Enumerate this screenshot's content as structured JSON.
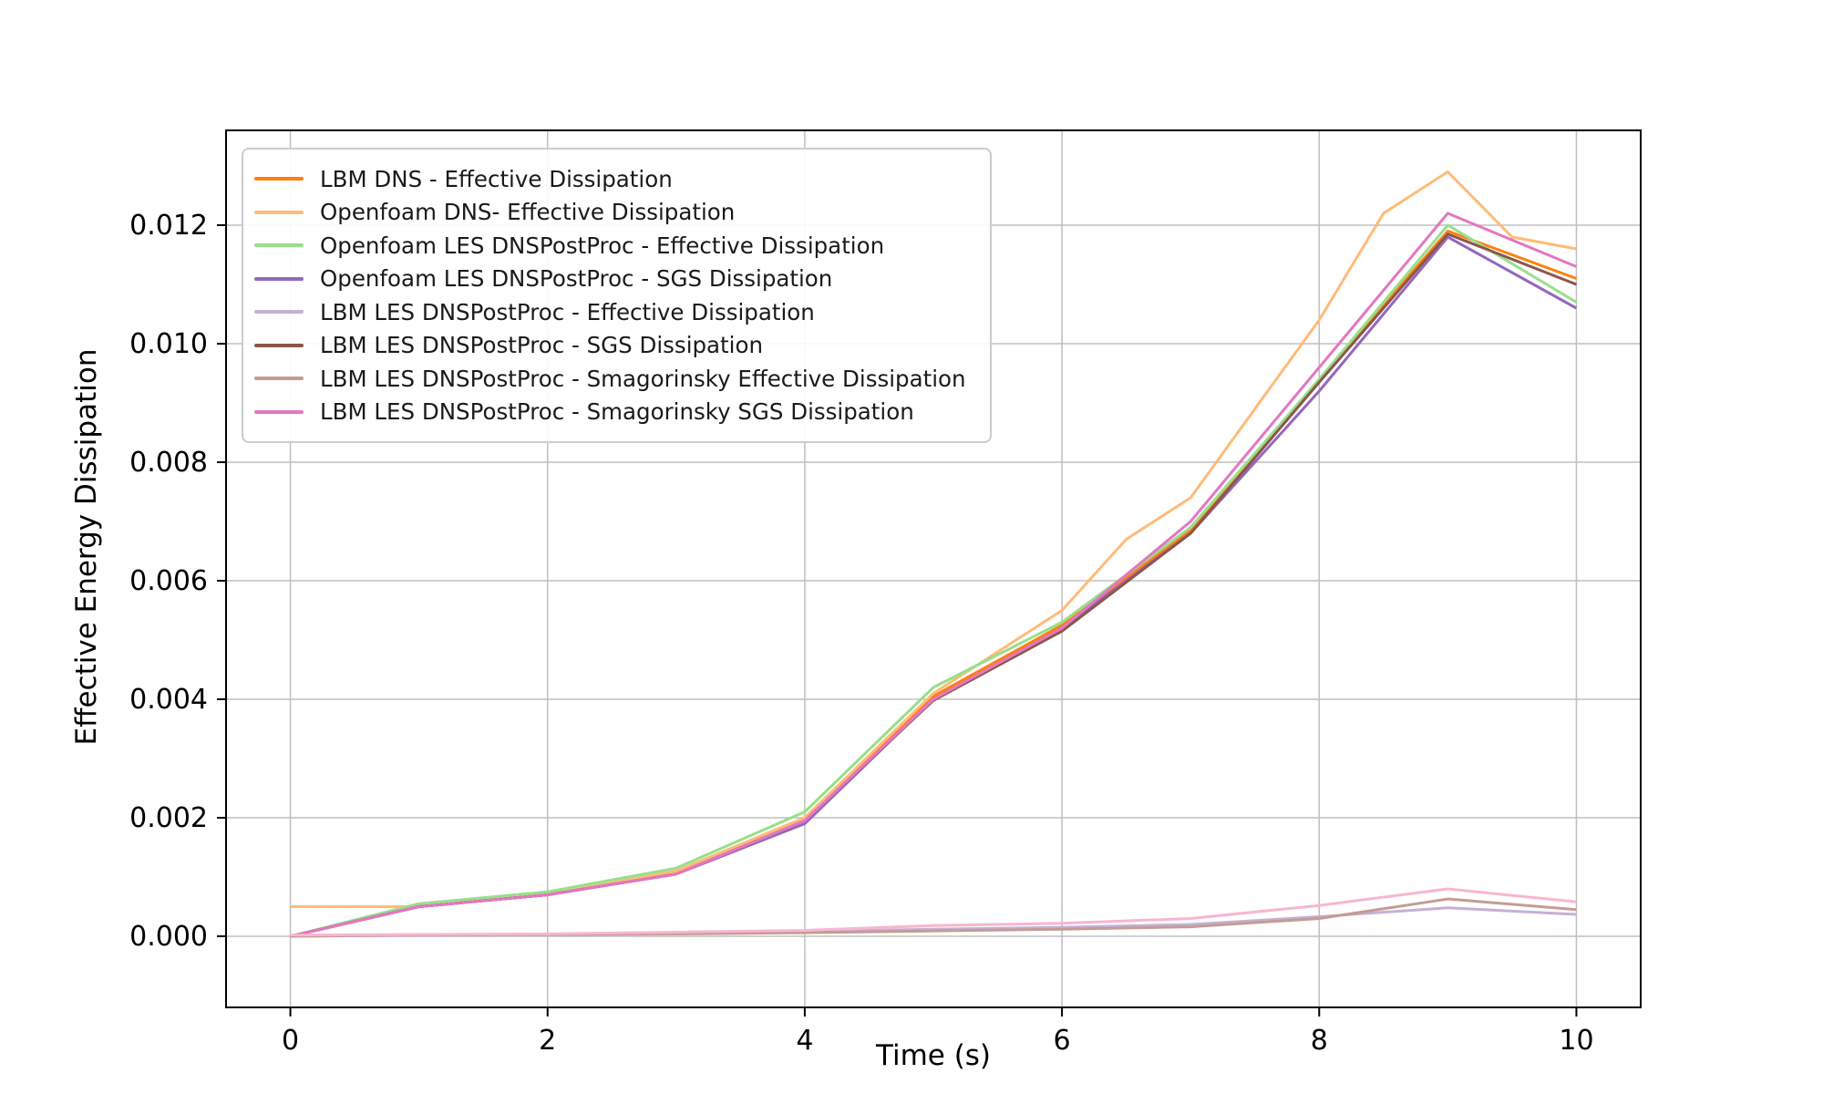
{
  "figure": {
    "background_color": "#ffffff"
  },
  "chart_data": {
    "type": "line",
    "title": "",
    "xlabel": "Time (s)",
    "ylabel": "Effective Energy Dissipation",
    "xlim": [
      -0.5,
      10.5
    ],
    "ylim": [
      -0.0012,
      0.0136
    ],
    "grid": true,
    "grid_color": "#bfbfbf",
    "spine_color": "#000000",
    "legend_position": "upper-left",
    "legend_border_color": "#cccccc",
    "x_ticks": {
      "values": [
        0,
        2,
        4,
        6,
        8,
        10
      ],
      "labels": [
        "0",
        "2",
        "4",
        "6",
        "8",
        "10"
      ]
    },
    "y_ticks": {
      "values": [
        0.0,
        0.002,
        0.004,
        0.006,
        0.008,
        0.01,
        0.012
      ],
      "labels": [
        "0.000",
        "0.002",
        "0.004",
        "0.006",
        "0.008",
        "0.010",
        "0.012"
      ]
    },
    "series": [
      {
        "label": "LBM DNS - Effective Dissipation",
        "color": "#ff7f0e",
        "in_legend": true,
        "x": [
          0,
          1,
          2,
          3,
          4,
          5,
          6,
          7,
          8,
          9,
          10
        ],
        "y": [
          0.0,
          0.0005,
          0.0007,
          0.0011,
          0.002,
          0.00405,
          0.00525,
          0.00685,
          0.0094,
          0.0119,
          0.0111
        ]
      },
      {
        "label": "Openfoam DNS- Effective Dissipation",
        "color": "#ffbb78",
        "in_legend": true,
        "x": [
          0,
          1,
          2,
          3,
          4,
          5,
          6,
          6.5,
          7,
          8,
          8.5,
          9,
          9.5,
          10
        ],
        "y": [
          0.0005,
          0.0005,
          0.0007,
          0.0011,
          0.002,
          0.0041,
          0.0055,
          0.0067,
          0.0074,
          0.0104,
          0.0122,
          0.0129,
          0.0118,
          0.0116
        ]
      },
      {
        "label": "Openfoam LES DNSPostProc - Effective Dissipation",
        "color": "#98df8a",
        "in_legend": true,
        "x": [
          0,
          1,
          2,
          3,
          4,
          5,
          6,
          7,
          8,
          9,
          10
        ],
        "y": [
          0.0,
          0.00055,
          0.00075,
          0.00115,
          0.0021,
          0.0042,
          0.0053,
          0.0069,
          0.0094,
          0.012,
          0.0107
        ]
      },
      {
        "label": "Openfoam LES DNSPostProc - SGS Dissipation",
        "color": "#9467bd",
        "in_legend": true,
        "x": [
          0,
          1,
          2,
          3,
          4,
          5,
          6,
          7,
          8,
          9,
          10
        ],
        "y": [
          0.0,
          0.0005,
          0.0007,
          0.00105,
          0.0019,
          0.004,
          0.0052,
          0.0068,
          0.0092,
          0.0118,
          0.0106
        ]
      },
      {
        "label": "LBM LES DNSPostProc - Effective Dissipation",
        "color": "#c5b0d5",
        "in_legend": true,
        "x": [
          0,
          1,
          2,
          3,
          4,
          5,
          6,
          7,
          8,
          9,
          10
        ],
        "y": [
          0.0,
          2e-05,
          3e-05,
          5e-05,
          8e-05,
          0.00012,
          0.00015,
          0.0002,
          0.00033,
          0.00048,
          0.00037
        ]
      },
      {
        "label": "LBM LES DNSPostProc - SGS Dissipation",
        "color": "#8c564b",
        "in_legend": true,
        "x": [
          0,
          1,
          2,
          3,
          4,
          5,
          6,
          7,
          8,
          9,
          10
        ],
        "y": [
          0.0,
          0.0005,
          0.0007,
          0.00105,
          0.00195,
          0.00398,
          0.00515,
          0.0068,
          0.00935,
          0.01185,
          0.011
        ]
      },
      {
        "label": "LBM LES DNSPostProc - Smagorinsky Effective Dissipation",
        "color": "#c49c94",
        "in_legend": true,
        "x": [
          0,
          1,
          2,
          3,
          4,
          5,
          6,
          7,
          8,
          9,
          10
        ],
        "y": [
          0.0,
          2e-05,
          3e-05,
          4e-05,
          6e-05,
          9e-05,
          0.00012,
          0.00016,
          0.0003,
          0.00063,
          0.00045
        ]
      },
      {
        "label": "LBM LES DNSPostProc - Smagorinsky SGS Dissipation",
        "color": "#e377c2",
        "in_legend": true,
        "x": [
          0,
          1,
          2,
          3,
          4,
          5,
          6,
          7,
          8,
          9,
          10
        ],
        "y": [
          0.0,
          0.0005,
          0.0007,
          0.00105,
          0.00195,
          0.004,
          0.0052,
          0.007,
          0.0096,
          0.0122,
          0.0113
        ]
      },
      {
        "label": "",
        "color": "#f7b6d2",
        "in_legend": false,
        "x": [
          0,
          1,
          2,
          3,
          4,
          5,
          6,
          7,
          8,
          9,
          10
        ],
        "y": [
          2e-05,
          3e-05,
          4e-05,
          7e-05,
          0.0001,
          0.00018,
          0.00022,
          0.0003,
          0.00052,
          0.0008,
          0.00058
        ]
      }
    ]
  }
}
